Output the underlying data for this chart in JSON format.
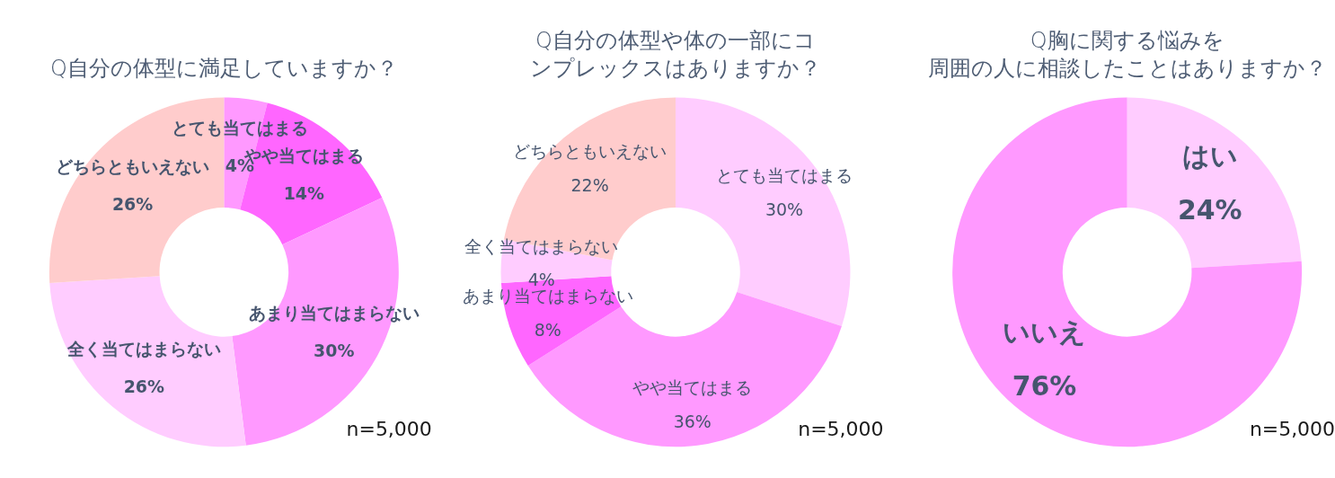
{
  "chart_data": [
    {
      "type": "donut",
      "title": "Q自分の体型に満足していますか？",
      "categories": [
        "とても当てはまる",
        "やや当てはまる",
        "あまり当てはまらない",
        "全く当てはまらない",
        "どちらともいえない"
      ],
      "values": [
        4,
        14,
        30,
        26,
        26
      ],
      "colors": [
        "#ff99ff",
        "#ff66ff",
        "#ff99ff",
        "#ffccff",
        "#ffcccc"
      ],
      "value_labels": [
        "4%",
        "14%",
        "30%",
        "26%",
        "26%"
      ],
      "annotations": [
        "n=5,000"
      ]
    },
    {
      "type": "donut",
      "title": "Q自分の体型や体の一部にコンプレックスはありますか？",
      "categories": [
        "とても当てはまる",
        "やや当てはまる",
        "あまり当てはまらない",
        "全く当てはまらない",
        "どちらともいえない"
      ],
      "values": [
        30,
        36,
        8,
        4,
        22
      ],
      "colors": [
        "#ffccff",
        "#ff99ff",
        "#ff66ff",
        "#ffccff",
        "#ffcccc"
      ],
      "value_labels": [
        "30%",
        "36%",
        "8%",
        "4%",
        "22%"
      ],
      "annotations": [
        "n=5,000"
      ]
    },
    {
      "type": "donut",
      "title": "Q胸に関する悩みを周囲の人に相談したことはありますか？",
      "categories": [
        "はい",
        "いいえ"
      ],
      "values": [
        24,
        76
      ],
      "colors": [
        "#ffccff",
        "#ff99ff"
      ],
      "value_labels": [
        "24%",
        "76%"
      ],
      "annotations": [
        "n=5,000"
      ]
    }
  ]
}
